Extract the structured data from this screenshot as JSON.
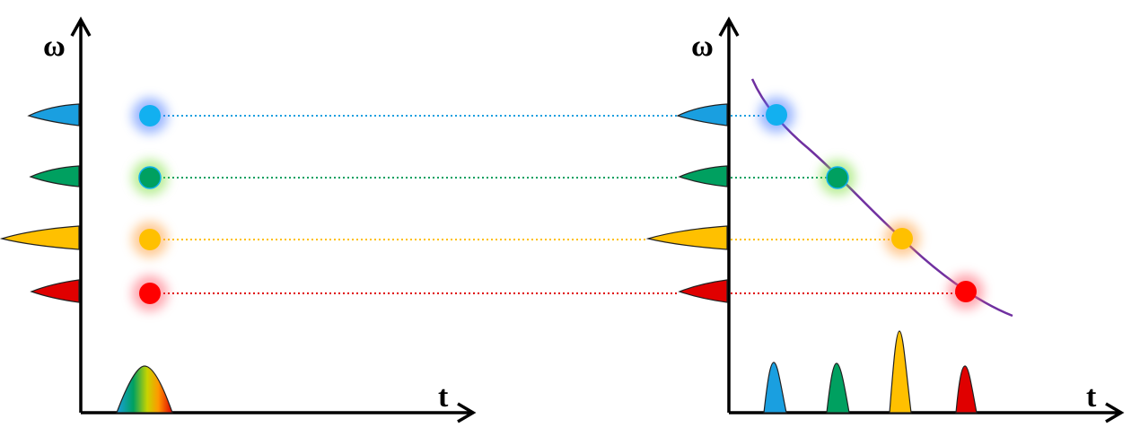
{
  "left_panel": {
    "y_axis_label": "ω",
    "x_axis_label": "t"
  },
  "right_panel": {
    "y_axis_label": "ω",
    "x_axis_label": "t"
  }
}
